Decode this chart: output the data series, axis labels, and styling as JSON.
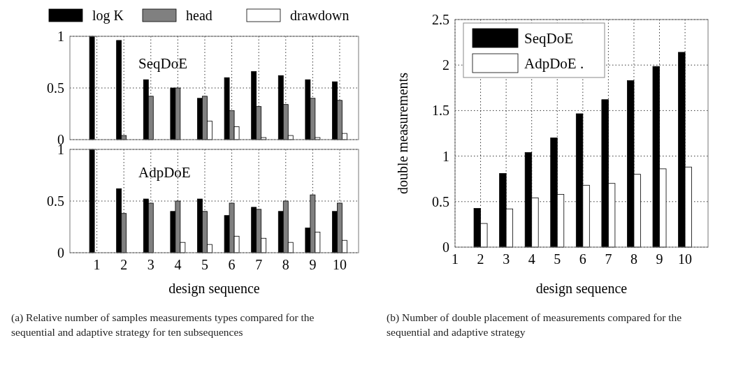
{
  "chart_data": [
    {
      "type": "bar",
      "x": [
        1,
        2,
        3,
        4,
        5,
        6,
        7,
        8,
        9,
        10
      ],
      "xlim": [
        0,
        10.7
      ],
      "xticks": [
        1,
        2,
        3,
        4,
        5,
        6,
        7,
        8,
        9,
        10
      ],
      "ylim": [
        0,
        1
      ],
      "yticks": [
        0,
        0.5,
        1
      ],
      "tick_labels": "y",
      "grid": true,
      "legend": "top",
      "annotations": [
        "SeqDoE"
      ],
      "series": [
        {
          "name": "log K",
          "color": "#000000",
          "values": [
            1,
            0.96,
            0.58,
            0.5,
            0.4,
            0.6,
            0.66,
            0.62,
            0.58,
            0.56
          ]
        },
        {
          "name": "head",
          "color": "#808080",
          "values": [
            0,
            0.04,
            0.42,
            0.5,
            0.42,
            0.28,
            0.32,
            0.34,
            0.4,
            0.38
          ]
        },
        {
          "name": "drawdown",
          "color": "#ffffff",
          "values": [
            0,
            0,
            0,
            0,
            0.18,
            0.125,
            0.02,
            0.04,
            0.02,
            0.06
          ]
        }
      ]
    },
    {
      "type": "bar",
      "x": [
        1,
        2,
        3,
        4,
        5,
        6,
        7,
        8,
        9,
        10
      ],
      "xlim": [
        0,
        10.7
      ],
      "xticks": [
        1,
        2,
        3,
        4,
        5,
        6,
        7,
        8,
        9,
        10
      ],
      "ylim": [
        0,
        1
      ],
      "yticks": [
        0,
        0.5,
        1
      ],
      "grid": true,
      "xlabel": "design sequence",
      "annotations": [
        "AdpDoE",
        "(a) Relative number of samples measurements types compared for the sequential and adaptive strategy for ten subsequences"
      ],
      "series": [
        {
          "color": "#000000",
          "values": [
            1,
            0.62,
            0.52,
            0.4,
            0.52,
            0.36,
            0.44,
            0.4,
            0.24,
            0.4
          ]
        },
        {
          "color": "#808080",
          "values": [
            0,
            0.38,
            0.48,
            0.5,
            0.4,
            0.48,
            0.42,
            0.5,
            0.56,
            0.48
          ]
        },
        {
          "color": "#ffffff",
          "values": [
            0,
            0,
            0,
            0.1,
            0.08,
            0.16,
            0.14,
            0.1,
            0.2,
            0.12
          ]
        }
      ]
    },
    {
      "type": "bar",
      "x": [
        2,
        3,
        4,
        5,
        6,
        7,
        8,
        9,
        10
      ],
      "xlim": [
        1,
        10.9
      ],
      "xticks": [
        1,
        2,
        3,
        4,
        5,
        6,
        7,
        8,
        9,
        10
      ],
      "ylim": [
        0,
        2.5
      ],
      "yticks": [
        0,
        0.5,
        1,
        1.5,
        2,
        2.5
      ],
      "grid": true,
      "legend": "top left",
      "xlabel": "design sequence",
      "ylabel": "double measurements",
      "annotations": [
        "(b) Number of double placement of measurements compared for the sequential and adaptive strategy"
      ],
      "series": [
        {
          "name": "SeqDoE",
          "color": "#000000",
          "values": [
            0.425,
            0.81,
            1.04,
            1.2,
            1.465,
            1.62,
            1.83,
            1.985,
            2.14
          ]
        },
        {
          "name": "AdpDoE .",
          "color": "#ffffff",
          "values": [
            0.26,
            0.42,
            0.54,
            0.58,
            0.68,
            0.7,
            0.8,
            0.86,
            0.88
          ]
        }
      ]
    }
  ]
}
